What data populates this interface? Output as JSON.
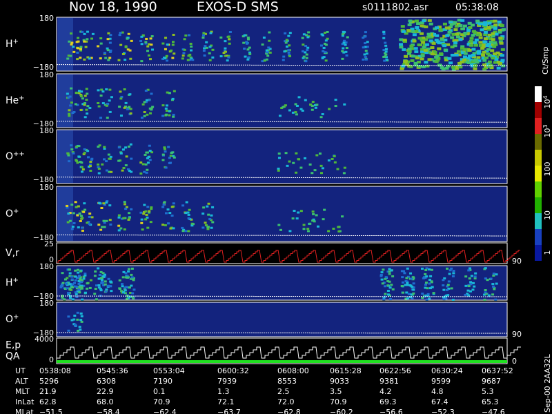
{
  "header": {
    "date": "Nov 18, 1990",
    "instrument": "EXOS-D SMS",
    "file": "s0111802.asr",
    "time": "05:38:08"
  },
  "panels": [
    {
      "label": "H",
      "sup": "+",
      "ytop": "180",
      "ybottom": "−180"
    },
    {
      "label": "He",
      "sup": "+",
      "ytop": "180",
      "ybottom": "−180"
    },
    {
      "label": "O",
      "sup": "++",
      "ytop": "180",
      "ybottom": "−180"
    },
    {
      "label": "O",
      "sup": "+",
      "ytop": "180",
      "ybottom": "−180"
    },
    {
      "label": "V,r",
      "ytop": "25",
      "ybottom": "0",
      "right": "90"
    },
    {
      "label": "H",
      "sup": "+",
      "ytop": "180",
      "ybottom": "−180"
    },
    {
      "label": "O",
      "sup": "+",
      "ytop": "180",
      "ybottom": "−180",
      "right": "90"
    },
    {
      "label": "E,p",
      "label2": "QA",
      "ytop": "4000",
      "ybottom": "0",
      "right": "0"
    }
  ],
  "colorbar": {
    "unit": "Ct/Smp",
    "labels": [
      {
        "base": "10",
        "exp": "4"
      },
      {
        "base": "10",
        "exp": "3"
      },
      {
        "base": "100"
      },
      {
        "base": "10"
      },
      {
        "base": "1"
      }
    ]
  },
  "footer": {
    "rows": [
      {
        "name": "UT",
        "values": [
          "0538:08",
          "0545:36",
          "0553:04",
          "0600:32",
          "0608:00",
          "0615:28",
          "0622:56",
          "0630:24",
          "0637:52"
        ]
      },
      {
        "name": "ALT",
        "values": [
          "5296",
          "6308",
          "7190",
          "7939",
          "8553",
          "9033",
          "9381",
          "9599",
          "9687"
        ]
      },
      {
        "name": "MLT",
        "values": [
          "21.9",
          "22.9",
          "0.1",
          "1.3",
          "2.5",
          "3.5",
          "4.2",
          "4.8",
          "5.3"
        ]
      },
      {
        "name": "InLat",
        "values": [
          "62.8",
          "68.0",
          "70.9",
          "72.1",
          "72.0",
          "70.9",
          "69.3",
          "67.4",
          "65.3"
        ]
      },
      {
        "name": "MLat",
        "values": [
          "−51.5",
          "−58.4",
          "−62.4",
          "−63.7",
          "−62.8",
          "−60.2",
          "−56.6",
          "−52.3",
          "−47.6"
        ]
      }
    ]
  },
  "side": "Sep-00 2AA32L"
}
